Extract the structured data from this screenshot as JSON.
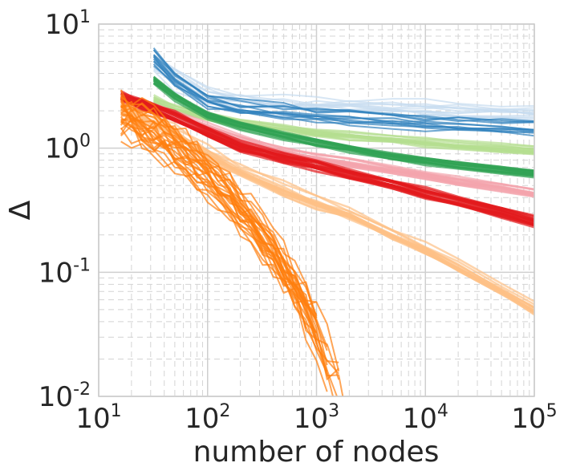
{
  "chart_data": {
    "type": "line",
    "title": "",
    "xlabel": "number of nodes",
    "ylabel": "Δ",
    "xscale": "log",
    "yscale": "log",
    "xlim": [
      10,
      100000
    ],
    "ylim": [
      0.01,
      10
    ],
    "grid": "on (major solid, minor dashed)",
    "legend": "none",
    "x_ticks": [
      {
        "base": "10",
        "exp": "1",
        "value": 10
      },
      {
        "base": "10",
        "exp": "2",
        "value": 100
      },
      {
        "base": "10",
        "exp": "3",
        "value": 1000
      },
      {
        "base": "10",
        "exp": "4",
        "value": 10000
      },
      {
        "base": "10",
        "exp": "5",
        "value": 100000
      }
    ],
    "y_ticks": [
      {
        "base": "10",
        "exp": "1",
        "value": 10
      },
      {
        "base": "10",
        "exp": "0",
        "value": 1
      },
      {
        "base": "10",
        "exp": "-1",
        "value": 0.1
      },
      {
        "base": "10",
        "exp": "-2",
        "value": 0.01
      }
    ],
    "series_groups": [
      {
        "color": "#c6dbef",
        "runs": 12,
        "x": [
          32,
          50,
          100,
          200,
          500,
          1000,
          2000,
          5000,
          10000,
          20000,
          50000,
          100000
        ],
        "y": [
          5.0,
          3.6,
          2.6,
          2.3,
          2.2,
          2.15,
          2.1,
          2.05,
          2.0,
          1.95,
          1.9,
          1.85
        ],
        "spread": 0.1,
        "width": 2
      },
      {
        "color": "#3182bd",
        "runs": 12,
        "x": [
          32,
          50,
          100,
          200,
          500,
          1000,
          2000,
          5000,
          10000,
          20000,
          50000,
          100000
        ],
        "y": [
          5.5,
          3.6,
          2.4,
          2.1,
          1.95,
          1.85,
          1.8,
          1.7,
          1.6,
          1.55,
          1.5,
          1.45
        ],
        "spread": 0.08,
        "width": 2
      },
      {
        "color": "#b5de90",
        "runs": 14,
        "x": [
          32,
          50,
          100,
          200,
          500,
          1000,
          2000,
          5000,
          10000,
          20000,
          50000,
          100000
        ],
        "y": [
          2.5,
          2.1,
          1.8,
          1.6,
          1.45,
          1.35,
          1.28,
          1.2,
          1.13,
          1.08,
          1.02,
          0.98
        ],
        "spread": 0.04,
        "width": 2.5
      },
      {
        "color": "#31a354",
        "runs": 14,
        "x": [
          32,
          50,
          100,
          200,
          500,
          1000,
          2000,
          5000,
          10000,
          20000,
          50000,
          100000
        ],
        "y": [
          3.5,
          2.6,
          1.8,
          1.5,
          1.25,
          1.1,
          0.98,
          0.85,
          0.78,
          0.72,
          0.66,
          0.62
        ],
        "spread": 0.03,
        "width": 2.5
      },
      {
        "color": "#f4a4ad",
        "runs": 14,
        "x": [
          16,
          25,
          50,
          100,
          200,
          500,
          1000,
          2000,
          5000,
          10000,
          20000,
          50000,
          100000
        ],
        "y": [
          2.6,
          2.3,
          1.9,
          1.5,
          1.2,
          0.95,
          0.85,
          0.77,
          0.68,
          0.61,
          0.55,
          0.49,
          0.44
        ],
        "spread": 0.04,
        "width": 2.5
      },
      {
        "color": "#e31a1c",
        "runs": 16,
        "x": [
          16,
          25,
          50,
          100,
          200,
          500,
          1000,
          2000,
          5000,
          10000,
          20000,
          50000,
          100000
        ],
        "y": [
          2.6,
          2.3,
          1.8,
          1.35,
          1.05,
          0.85,
          0.74,
          0.63,
          0.52,
          0.44,
          0.38,
          0.31,
          0.26
        ],
        "spread": 0.05,
        "width": 3
      },
      {
        "color": "#fdc086",
        "runs": 16,
        "x": [
          16,
          25,
          50,
          100,
          200,
          500,
          1000,
          2000,
          5000,
          10000,
          20000,
          50000,
          100000
        ],
        "y": [
          2.2,
          1.9,
          1.4,
          0.95,
          0.68,
          0.48,
          0.38,
          0.3,
          0.21,
          0.16,
          0.115,
          0.075,
          0.052
        ],
        "spread": 0.07,
        "width": 2.5
      },
      {
        "color": "#ff7f0e",
        "runs": 28,
        "x": [
          16,
          20,
          25,
          32,
          40,
          50,
          63,
          80,
          100,
          125,
          160,
          200,
          250,
          320,
          400,
          500,
          630,
          800,
          1000,
          1250,
          1600,
          2000
        ],
        "y": [
          1.8,
          1.6,
          1.45,
          1.35,
          1.2,
          1.05,
          0.9,
          0.75,
          0.6,
          0.5,
          0.4,
          0.32,
          0.26,
          0.2,
          0.16,
          0.12,
          0.09,
          0.065,
          0.045,
          0.03,
          0.02,
          0.013
        ],
        "spread": 0.2,
        "width": 2
      }
    ]
  }
}
